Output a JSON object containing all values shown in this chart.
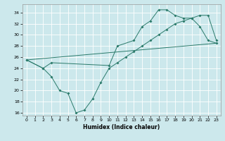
{
  "xlabel": "Humidex (Indice chaleur)",
  "bg_color": "#cce8ec",
  "grid_color": "#ffffff",
  "line_color": "#2a7a6a",
  "xlim": [
    -0.5,
    23.5
  ],
  "ylim": [
    15.5,
    35.5
  ],
  "xticks": [
    0,
    1,
    2,
    3,
    4,
    5,
    6,
    7,
    8,
    9,
    10,
    11,
    12,
    13,
    14,
    15,
    16,
    17,
    18,
    19,
    20,
    21,
    22,
    23
  ],
  "yticks": [
    16,
    18,
    20,
    22,
    24,
    26,
    28,
    30,
    32,
    34
  ],
  "line_dip": {
    "x": [
      0,
      2,
      3,
      4,
      5,
      6,
      7,
      8,
      9,
      10,
      11,
      12,
      13,
      14,
      15,
      16,
      17,
      18,
      19,
      20,
      21,
      22,
      23
    ],
    "y": [
      25.5,
      24,
      22.5,
      20,
      19.5,
      16,
      16.5,
      18.5,
      21.5,
      24,
      25,
      26,
      27,
      28,
      29,
      30,
      31,
      32,
      32.5,
      33,
      33.5,
      33.5,
      29
    ]
  },
  "line_peak": {
    "x": [
      0,
      2,
      3,
      10,
      11,
      13,
      14,
      15,
      16,
      17,
      18,
      19,
      20,
      21,
      22,
      23
    ],
    "y": [
      25.5,
      24,
      25,
      24.5,
      28,
      29,
      31.5,
      32.5,
      34.5,
      34.5,
      33.5,
      33,
      33,
      31.5,
      29,
      28.5
    ]
  },
  "line_straight": {
    "x": [
      0,
      23
    ],
    "y": [
      25.5,
      28.5
    ]
  }
}
